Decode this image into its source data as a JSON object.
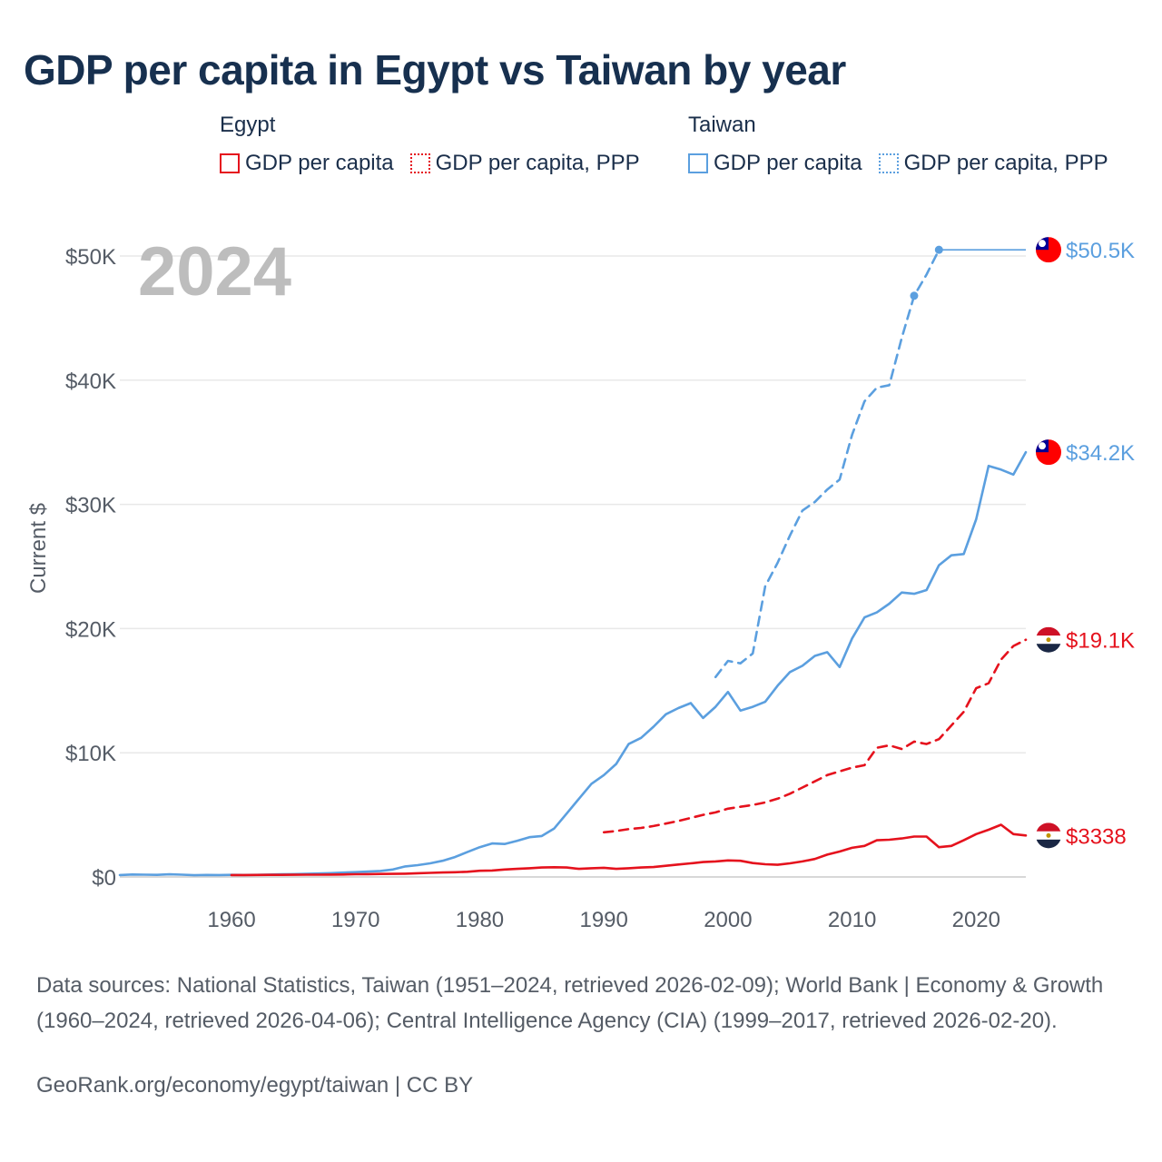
{
  "title": "GDP per capita in Egypt vs Taiwan by year",
  "legend": {
    "egypt": {
      "name": "Egypt",
      "items": [
        {
          "label": "GDP per capita",
          "color": "#e5121d",
          "style": "solid"
        },
        {
          "label": "GDP per capita, PPP",
          "color": "#e5121d",
          "style": "dotted"
        }
      ]
    },
    "taiwan": {
      "name": "Taiwan",
      "items": [
        {
          "label": "GDP per capita",
          "color": "#5b9fdf",
          "style": "solid"
        },
        {
          "label": "GDP per capita, PPP",
          "color": "#5b9fdf",
          "style": "dotted"
        }
      ]
    }
  },
  "chart_data": {
    "type": "line",
    "title": "GDP per capita in Egypt vs Taiwan by year",
    "year_label": "2024",
    "ylabel": "Current $",
    "xlim": [
      1951,
      2024
    ],
    "ylim": [
      0,
      53000
    ],
    "x_ticks": [
      1960,
      1970,
      1980,
      1990,
      2000,
      2010,
      2020
    ],
    "y_ticks": [
      {
        "value": 0,
        "label": "$0"
      },
      {
        "value": 10000,
        "label": "$10K"
      },
      {
        "value": 20000,
        "label": "$20K"
      },
      {
        "value": 30000,
        "label": "$30K"
      },
      {
        "value": 40000,
        "label": "$40K"
      },
      {
        "value": 50000,
        "label": "$50K"
      }
    ],
    "grid": true,
    "series": [
      {
        "name": "Taiwan GDP per capita",
        "color": "#5b9fdf",
        "dash": "",
        "end_label": "$34.2K",
        "x": [
          1951,
          1952,
          1953,
          1954,
          1955,
          1956,
          1957,
          1958,
          1959,
          1960,
          1961,
          1962,
          1963,
          1964,
          1965,
          1966,
          1967,
          1968,
          1969,
          1970,
          1971,
          1972,
          1973,
          1974,
          1975,
          1976,
          1977,
          1978,
          1979,
          1980,
          1981,
          1982,
          1983,
          1984,
          1985,
          1986,
          1987,
          1988,
          1989,
          1990,
          1991,
          1992,
          1993,
          1994,
          1995,
          1996,
          1997,
          1998,
          1999,
          2000,
          2001,
          2002,
          2003,
          2004,
          2005,
          2006,
          2007,
          2008,
          2009,
          2010,
          2011,
          2012,
          2013,
          2014,
          2015,
          2016,
          2017,
          2018,
          2019,
          2020,
          2021,
          2022,
          2023,
          2024
        ],
        "y": [
          150,
          200,
          180,
          170,
          210,
          180,
          140,
          160,
          150,
          170,
          160,
          170,
          190,
          220,
          230,
          250,
          280,
          310,
          350,
          390,
          430,
          480,
          600,
          850,
          950,
          1100,
          1300,
          1600,
          2000,
          2400,
          2700,
          2650,
          2900,
          3200,
          3300,
          3900,
          5100,
          6300,
          7500,
          8200,
          9100,
          10700,
          11200,
          12100,
          13100,
          13600,
          14000,
          12800,
          13700,
          14900,
          13400,
          13700,
          14100,
          15400,
          16500,
          17000,
          17800,
          18100,
          16900,
          19200,
          20900,
          21300,
          22000,
          22900,
          22800,
          23100,
          25100,
          25900,
          26000,
          28800,
          33100,
          32800,
          32400,
          34200
        ]
      },
      {
        "name": "Taiwan GDP per capita, PPP",
        "color": "#5b9fdf",
        "dash": "10,7",
        "end_label": "$50.5K",
        "x": [
          1999,
          2000,
          2001,
          2002,
          2003,
          2004,
          2005,
          2006,
          2007,
          2008,
          2009,
          2010,
          2011,
          2012,
          2013,
          2014,
          2015,
          2016,
          2017
        ],
        "y": [
          16100,
          17400,
          17200,
          18000,
          23400,
          25300,
          27500,
          29500,
          30200,
          31200,
          32000,
          35600,
          38300,
          39400,
          39600,
          43400,
          46800,
          48500,
          50500
        ],
        "markers": [
          2015,
          2017
        ],
        "extend_to": 2024
      },
      {
        "name": "Egypt GDP per capita",
        "color": "#e5121d",
        "dash": "",
        "end_label": "$3338",
        "x": [
          1960,
          1961,
          1962,
          1963,
          1964,
          1965,
          1966,
          1967,
          1968,
          1969,
          1970,
          1971,
          1972,
          1973,
          1974,
          1975,
          1976,
          1977,
          1978,
          1979,
          1980,
          1981,
          1982,
          1983,
          1984,
          1985,
          1986,
          1987,
          1988,
          1989,
          1990,
          1991,
          1992,
          1993,
          1994,
          1995,
          1996,
          1997,
          1998,
          1999,
          2000,
          2001,
          2002,
          2003,
          2004,
          2005,
          2006,
          2007,
          2008,
          2009,
          2010,
          2011,
          2012,
          2013,
          2014,
          2015,
          2016,
          2017,
          2018,
          2019,
          2020,
          2021,
          2022,
          2023,
          2024
        ],
        "y": [
          150,
          155,
          160,
          165,
          170,
          175,
          180,
          185,
          190,
          200,
          220,
          230,
          240,
          250,
          260,
          300,
          330,
          360,
          380,
          420,
          500,
          520,
          600,
          650,
          700,
          760,
          780,
          760,
          650,
          700,
          740,
          650,
          700,
          760,
          800,
          900,
          1000,
          1100,
          1200,
          1250,
          1330,
          1300,
          1120,
          1020,
          980,
          1100,
          1250,
          1450,
          1800,
          2050,
          2350,
          2500,
          2950,
          3000,
          3100,
          3250,
          3250,
          2400,
          2500,
          2950,
          3450,
          3800,
          4200,
          3450,
          3338
        ]
      },
      {
        "name": "Egypt GDP per capita, PPP",
        "color": "#e5121d",
        "dash": "10,7",
        "end_label": "$19.1K",
        "x": [
          1990,
          1991,
          1992,
          1993,
          1994,
          1995,
          1996,
          1997,
          1998,
          1999,
          2000,
          2001,
          2002,
          2003,
          2004,
          2005,
          2006,
          2007,
          2008,
          2009,
          2010,
          2011,
          2012,
          2013,
          2014,
          2015,
          2016,
          2017,
          2018,
          2019,
          2020,
          2021,
          2022,
          2023,
          2024
        ],
        "y": [
          3600,
          3700,
          3850,
          3950,
          4100,
          4300,
          4500,
          4750,
          5000,
          5200,
          5500,
          5650,
          5800,
          6000,
          6300,
          6700,
          7200,
          7700,
          8200,
          8500,
          8800,
          9000,
          10400,
          10600,
          10300,
          10900,
          10700,
          11100,
          12200,
          13300,
          15200,
          15600,
          17500,
          18600,
          19100
        ]
      }
    ]
  },
  "footer": {
    "sources": "Data sources: National Statistics, Taiwan (1951–2024, retrieved 2026-02-09); World Bank | Economy & Growth (1960–2024, retrieved 2026-04-06); Central Intelligence Agency (CIA) (1999–2017, retrieved 2026-02-20).",
    "credit": "GeoRank.org/economy/egypt/taiwan | CC BY"
  }
}
